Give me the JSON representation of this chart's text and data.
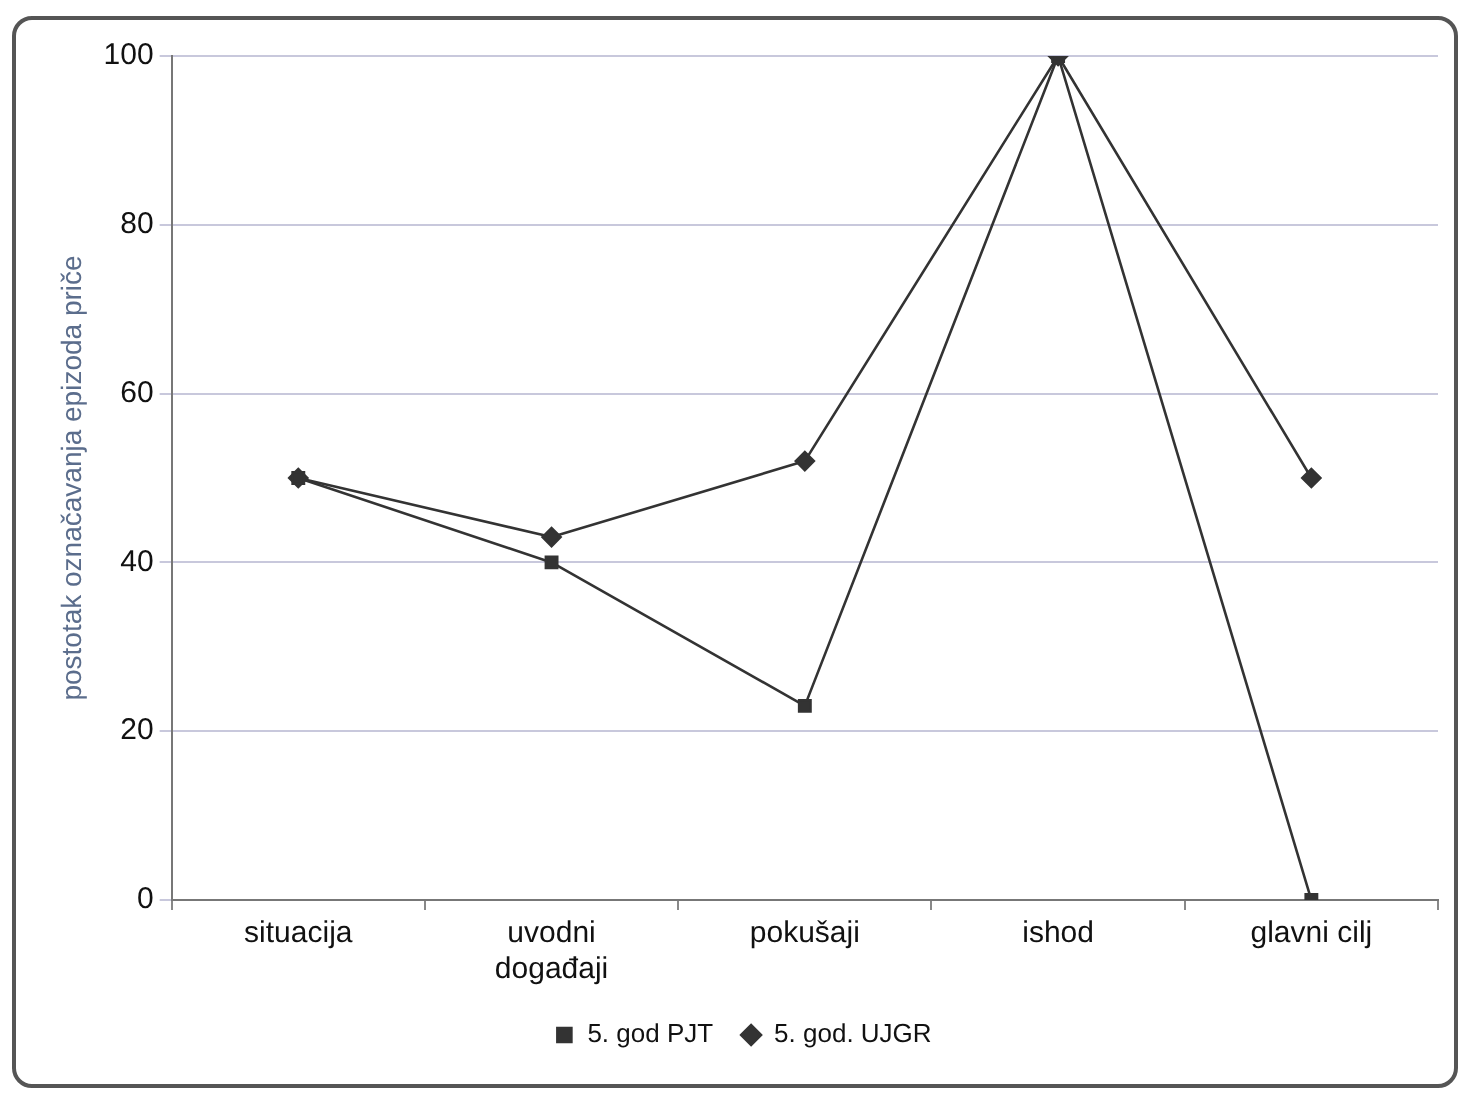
{
  "chart_data": {
    "type": "line",
    "ylabel": "postotak označavanja epizoda priče",
    "categories": [
      "situacija",
      "uvodni događaji",
      "pokušaji",
      "ishod",
      "glavni cilj"
    ],
    "series": [
      {
        "name": "5. god. UJGR",
        "color": "#333333",
        "marker": "diamond",
        "values": [
          50,
          43,
          52,
          100,
          50
        ]
      },
      {
        "name": "5. god PJT",
        "color": "#333333",
        "marker": "square",
        "values": [
          50,
          40,
          23,
          100,
          0
        ]
      }
    ],
    "ylim": [
      0,
      100
    ],
    "yticks": [
      0,
      20,
      40,
      60,
      80,
      100
    ],
    "grid": "y",
    "legend": "bottom",
    "line_style": "solid"
  }
}
